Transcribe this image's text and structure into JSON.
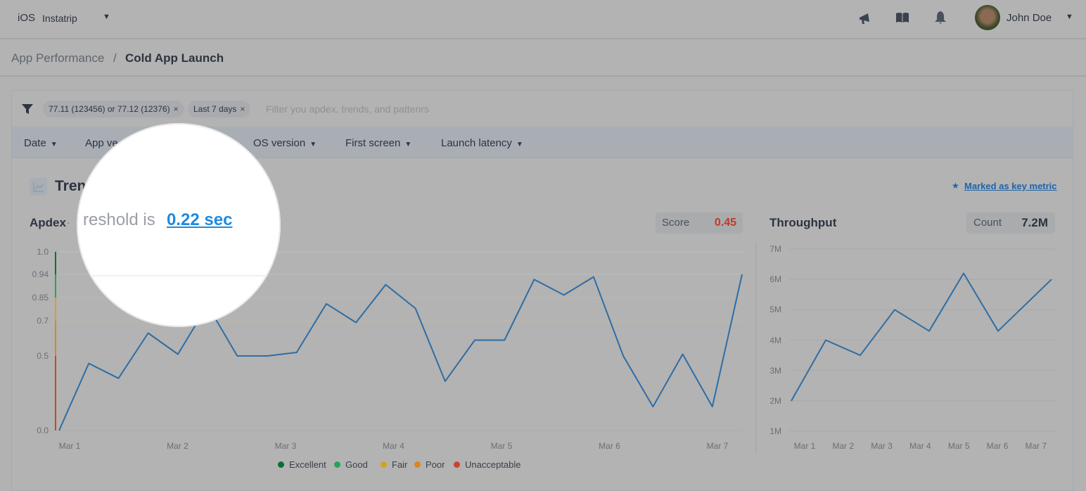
{
  "topnav": {
    "platform": "iOS",
    "app": "Instatrip",
    "user": "John Doe",
    "icons": [
      "megaphone-icon",
      "book-icon",
      "bell-icon"
    ]
  },
  "breadcrumb": {
    "parent": "App Performance",
    "separator": "/",
    "current": "Cold App Launch"
  },
  "filters": {
    "chips": [
      "77.11 (123456) or 77.12 (12376)",
      "Last 7 days"
    ],
    "placeholder": "Filter you apdex, trends, and patterns_text",
    "placeholder_text": "Filter you apdex, trends, and pattenrs"
  },
  "dropdowns": [
    "Date",
    "App ve",
    "OS version",
    "First screen",
    "Launch latency"
  ],
  "section": {
    "title": "Tren",
    "key_metric": "Marked as key metric"
  },
  "apdex": {
    "title": "Apdex",
    "sep": "·",
    "threshold_text": "reshold is",
    "threshold_value": "0.22 sec",
    "score_label": "Score",
    "score_value": "0.45",
    "score_color": "#c0392b"
  },
  "throughput": {
    "title": "Throughput",
    "count_label": "Count",
    "count_value": "7.2M"
  },
  "legend": [
    {
      "label": "Excellent",
      "color": "#0b6e35"
    },
    {
      "label": "Good",
      "color": "#27a35a"
    },
    {
      "label": "Fair",
      "color": "#d4a21c"
    },
    {
      "label": "Poor",
      "color": "#d9871f"
    },
    {
      "label": "Unacceptable",
      "color": "#c8452d"
    }
  ],
  "chart_data": [
    {
      "type": "line",
      "title": "Apdex",
      "ylabel": "",
      "xlabel": "",
      "y_ticks": [
        1.0,
        0.94,
        0.85,
        0.7,
        0.5,
        0.0
      ],
      "y_tick_labels": [
        "1.0",
        "0.94",
        "0.85",
        "0.7",
        "0.5",
        "0.0"
      ],
      "x_tick_labels": [
        "Mar 1",
        "Mar 2",
        "Mar 3",
        "Mar 4",
        "Mar 5",
        "Mar 6",
        "Mar 7"
      ],
      "values": [
        0.0,
        0.45,
        0.35,
        0.63,
        0.51,
        0.8,
        0.5,
        0.5,
        0.52,
        0.81,
        0.69,
        0.9,
        0.78,
        0.33,
        0.59,
        0.59,
        0.92,
        0.86,
        0.93,
        0.5,
        0.16,
        0.51,
        0.16,
        0.94
      ],
      "color": "#2e6da4",
      "ylim": [
        0,
        1
      ]
    },
    {
      "type": "line",
      "title": "Throughput",
      "y_tick_labels": [
        "7M",
        "6M",
        "5M",
        "4M",
        "3M",
        "2M",
        "1M"
      ],
      "ylim": [
        1,
        7
      ],
      "x_tick_labels": [
        "Mar 1",
        "Mar 2",
        "Mar 3",
        "Mar 4",
        "Mar 5",
        "Mar 6",
        "Mar 7"
      ],
      "x": [
        0,
        1,
        2,
        3,
        4,
        5,
        6,
        7.55
      ],
      "values": [
        2.0,
        4.0,
        3.5,
        5.0,
        4.3,
        6.2,
        4.3,
        6.0
      ],
      "color": "#2e6da4"
    }
  ]
}
